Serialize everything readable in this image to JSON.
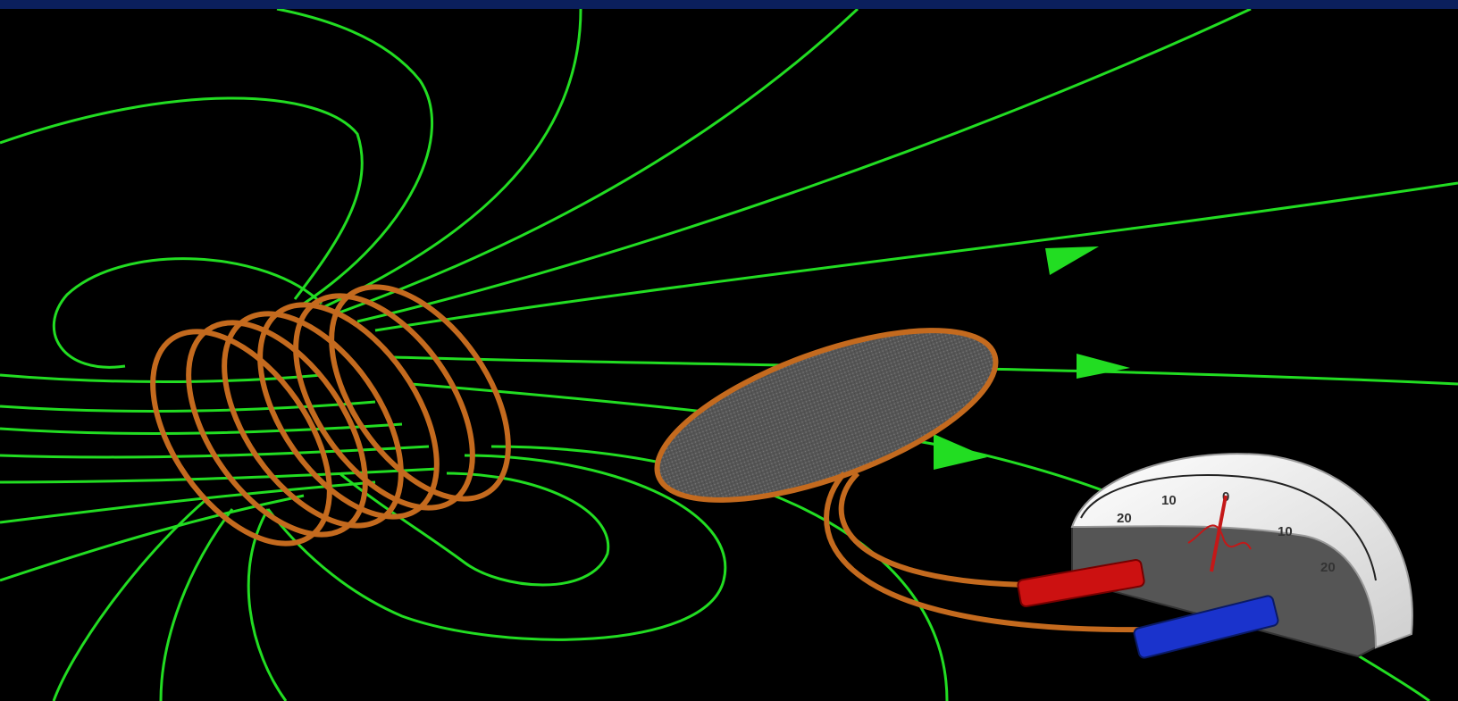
{
  "colors": {
    "background": "#000000",
    "top_bar": "#0b1f5c",
    "field_line": "#22dd22",
    "copper": "#c46a1e",
    "red_lead": "#cc1111",
    "blue_lead": "#1a33cc",
    "meter_body": "#e8e8e8"
  },
  "meter": {
    "scale_labels": [
      "20",
      "10",
      "0",
      "10",
      "20"
    ]
  }
}
